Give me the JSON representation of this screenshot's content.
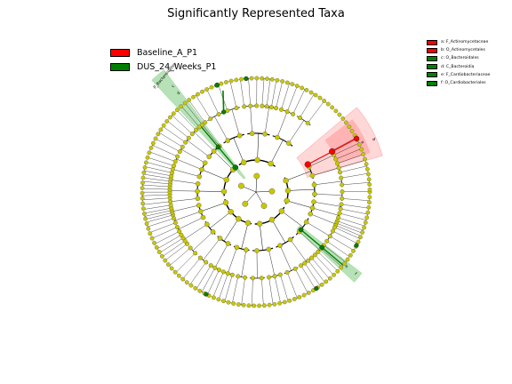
{
  "title": "Significantly Represented Taxa",
  "colors": {
    "group_a": "#ff0000",
    "group_b": "#008000",
    "node_default": "#c8c800",
    "highlight_red": "#ff6f6f",
    "highlight_green": "#5fbf5f"
  },
  "legend": [
    {
      "label": "Baseline_A_P1",
      "color": "#ff0000"
    },
    {
      "label": "DUS_24_Weeks_P1",
      "color": "#008000"
    }
  ],
  "key": [
    {
      "label": "a: F_Actinomycetaceae",
      "color": "#ff0000"
    },
    {
      "label": "b: O_Actinomycetales",
      "color": "#ff0000"
    },
    {
      "label": "c: O_Bacteroidales",
      "color": "#008000"
    },
    {
      "label": "d: C_Bacteroidia",
      "color": "#008000"
    },
    {
      "label": "e: F_Cardiobacteriaceae",
      "color": "#008000"
    },
    {
      "label": "f: O_Cardiobacteriales",
      "color": "#008000"
    }
  ],
  "clades": {
    "phylum_label": "P_Bacteroidetes",
    "red_inner_letter": "a",
    "red_outer_letter": "b",
    "green_inner_letter": "c",
    "green_outer_letter": "d",
    "green2_inner_letter": "e",
    "green2_outer_letter": "f"
  }
}
